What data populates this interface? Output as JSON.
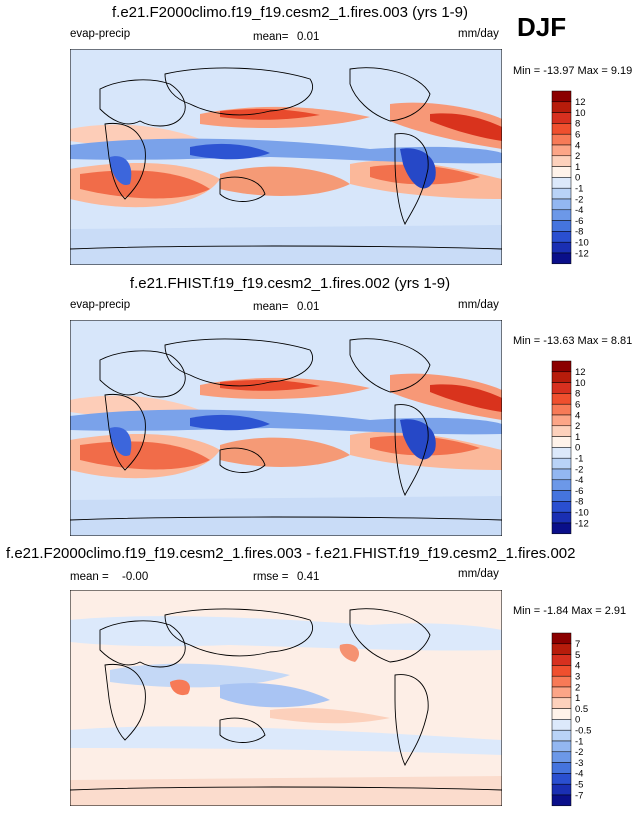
{
  "season": "DJF",
  "chart_data": [
    {
      "type": "heatmap",
      "title": "f.e21.F2000climo.f19_f19.cesm2_1.fires.003 (yrs 1-9)",
      "variable": "evap-precip",
      "stat_label": "mean=",
      "stat_value": "0.01",
      "units": "mm/day",
      "min_label": "Min =",
      "min": "-13.97",
      "max_label": "Max =",
      "max": "9.19",
      "colorbar_levels": [
        "12",
        "10",
        "8",
        "6",
        "4",
        "2",
        "1",
        "0",
        "-1",
        "-2",
        "-4",
        "-6",
        "-8",
        "-10",
        "-12"
      ],
      "colorbar_colors": [
        "#8b0000",
        "#b71c0b",
        "#d7301f",
        "#ef4f2e",
        "#f77a57",
        "#fca587",
        "#fdd1bc",
        "#fff3ea",
        "#dce9fb",
        "#b9d3f7",
        "#93b7f1",
        "#6c98e8",
        "#4574de",
        "#2a4fd0",
        "#1a2fb3",
        "#0a0f8a"
      ]
    },
    {
      "type": "heatmap",
      "title": "f.e21.FHIST.f19_f19.cesm2_1.fires.002 (yrs 1-9)",
      "variable": "evap-precip",
      "stat_label": "mean=",
      "stat_value": "0.01",
      "units": "mm/day",
      "min_label": "Min =",
      "min": "-13.63",
      "max_label": "Max =",
      "max": "8.81",
      "colorbar_levels": [
        "12",
        "10",
        "8",
        "6",
        "4",
        "2",
        "1",
        "0",
        "-1",
        "-2",
        "-4",
        "-6",
        "-8",
        "-10",
        "-12"
      ],
      "colorbar_colors": [
        "#8b0000",
        "#b71c0b",
        "#d7301f",
        "#ef4f2e",
        "#f77a57",
        "#fca587",
        "#fdd1bc",
        "#fff3ea",
        "#dce9fb",
        "#b9d3f7",
        "#93b7f1",
        "#6c98e8",
        "#4574de",
        "#2a4fd0",
        "#1a2fb3",
        "#0a0f8a"
      ]
    },
    {
      "type": "heatmap",
      "title": "f.e21.F2000climo.f19_f19.cesm2_1.fires.003 - f.e21.FHIST.f19_f19.cesm2_1.fires.002",
      "stat_label": "mean =",
      "stat_value": "-0.00",
      "stat2_label": "rmse =",
      "stat2_value": "0.41",
      "units": "mm/day",
      "min_label": "Min =",
      "min": "-1.84",
      "max_label": "Max =",
      "max": "2.91",
      "colorbar_levels": [
        "7",
        "5",
        "4",
        "3",
        "2",
        "1",
        "0.5",
        "0",
        "-0.5",
        "-1",
        "-2",
        "-3",
        "-4",
        "-5",
        "-7"
      ],
      "colorbar_colors": [
        "#8b0000",
        "#b71c0b",
        "#d7301f",
        "#ef4f2e",
        "#f77a57",
        "#fca587",
        "#fdd1bc",
        "#fff3ea",
        "#dce9fb",
        "#b9d3f7",
        "#93b7f1",
        "#6c98e8",
        "#4574de",
        "#2a4fd0",
        "#1a2fb3",
        "#0a0f8a"
      ]
    }
  ]
}
